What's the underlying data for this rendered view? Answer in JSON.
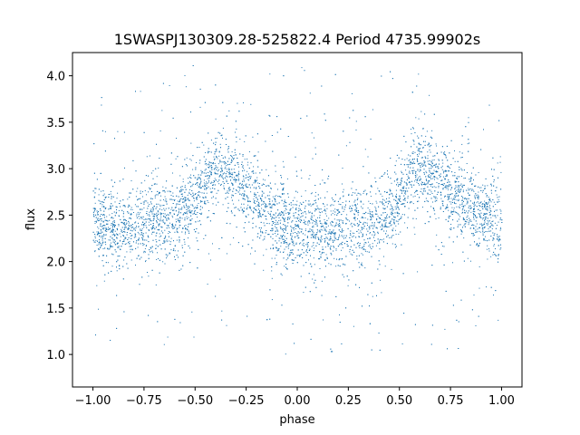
{
  "chart_data": {
    "type": "scatter",
    "title": "1SWASPJ130309.28-525822.4 Period 4735.99902s",
    "xlabel": "phase",
    "ylabel": "flux",
    "xlim": [
      -1.1,
      1.1
    ],
    "ylim": [
      0.65,
      4.25
    ],
    "xticks": [
      -1.0,
      -0.75,
      -0.5,
      -0.25,
      0.0,
      0.25,
      0.5,
      0.75,
      1.0
    ],
    "xtick_labels": [
      "−1.00",
      "−0.75",
      "−0.50",
      "−0.25",
      "0.00",
      "0.25",
      "0.50",
      "0.75",
      "1.00"
    ],
    "yticks": [
      1.0,
      1.5,
      2.0,
      2.5,
      3.0,
      3.5,
      4.0
    ],
    "ytick_labels": [
      "1.0",
      "1.5",
      "2.0",
      "2.5",
      "3.0",
      "3.5",
      "4.0"
    ],
    "grid": false,
    "point_color": "#1f77b4",
    "series": [
      {
        "description": "light curve folded on period, phase -1 to 1; baseline flux ~2.4 with scatter ~2.0-2.8, hump peaking ~3.0 near phase -0.4 and 0.6",
        "x": [
          -1.0,
          -0.9,
          -0.8,
          -0.7,
          -0.6,
          -0.5,
          -0.45,
          -0.4,
          -0.35,
          -0.3,
          -0.25,
          -0.2,
          -0.1,
          0.0,
          0.1,
          0.2,
          0.3,
          0.4,
          0.5,
          0.55,
          0.6,
          0.65,
          0.7,
          0.75,
          0.8,
          0.9,
          1.0
        ],
        "y": [
          2.4,
          2.35,
          2.4,
          2.45,
          2.45,
          2.65,
          2.85,
          3.0,
          2.95,
          2.85,
          2.75,
          2.65,
          2.45,
          2.35,
          2.35,
          2.35,
          2.4,
          2.45,
          2.65,
          2.9,
          3.0,
          2.95,
          2.85,
          2.75,
          2.65,
          2.5,
          2.4
        ]
      }
    ]
  }
}
